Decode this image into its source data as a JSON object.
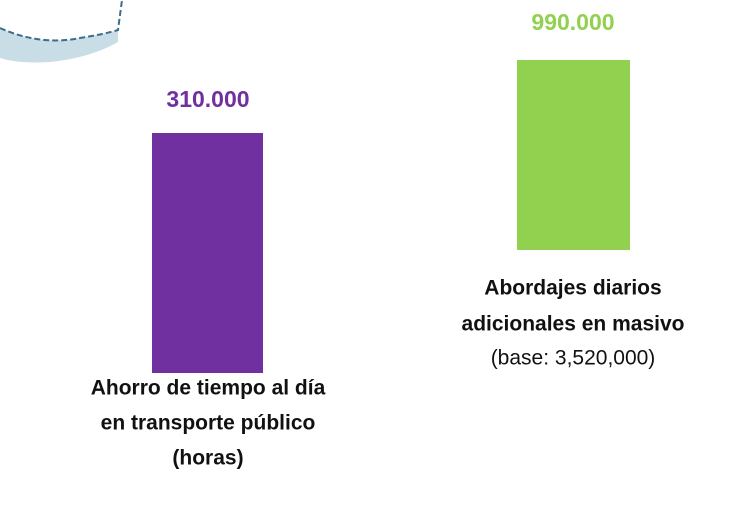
{
  "items": [
    {
      "value": "310.000",
      "label_lines": [
        "Ahorro de tiempo al día",
        "en transporte público",
        "(horas)"
      ]
    },
    {
      "value": "990.000",
      "label_lines": [
        "Abordajes diarios",
        "adicionales en masivo"
      ],
      "note": "(base: 3,520,000)"
    }
  ]
}
